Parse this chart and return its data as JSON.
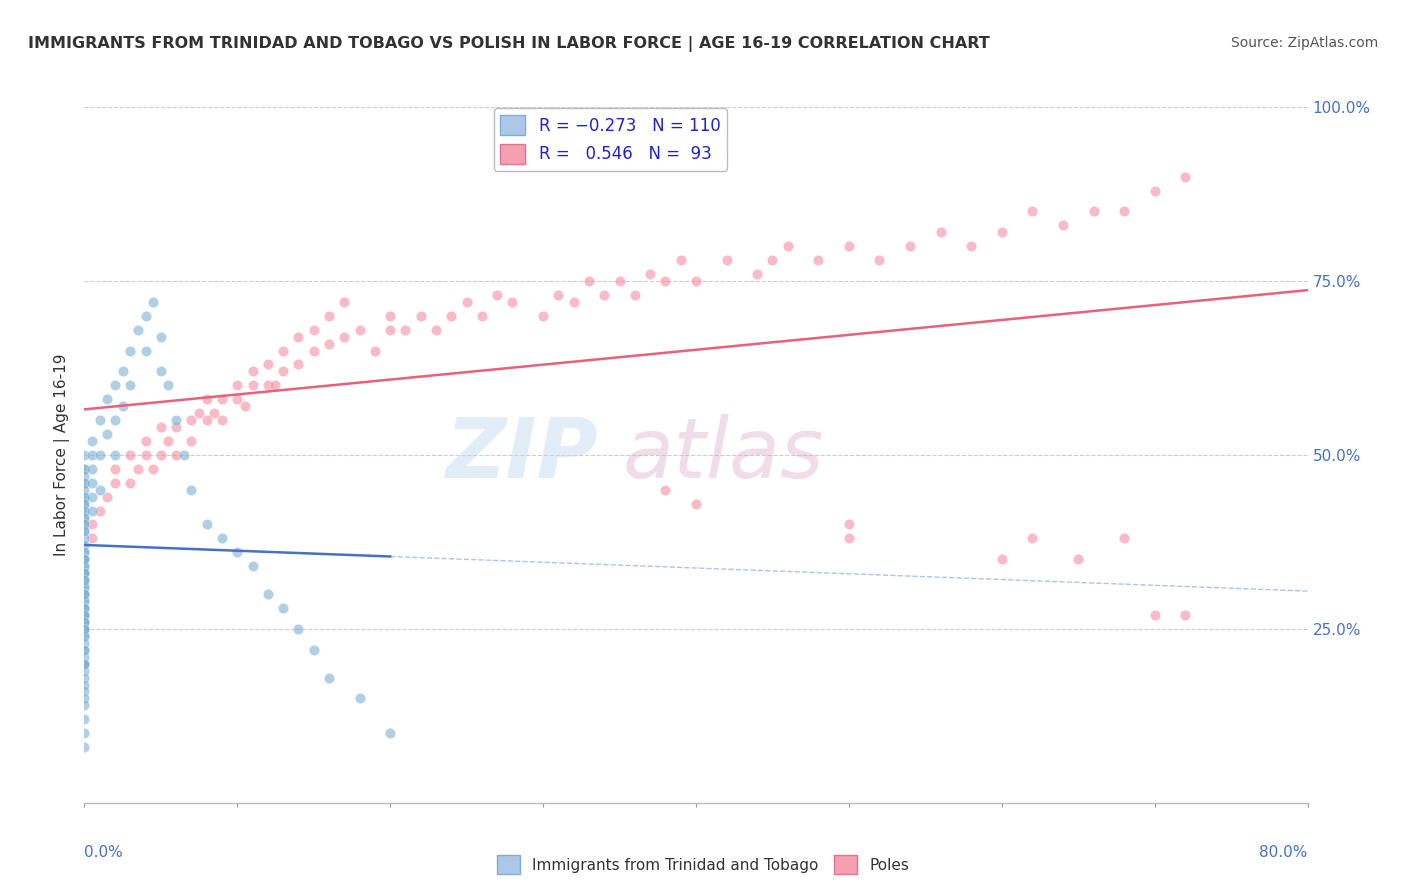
{
  "title": "IMMIGRANTS FROM TRINIDAD AND TOBAGO VS POLISH IN LABOR FORCE | AGE 16-19 CORRELATION CHART",
  "source": "Source: ZipAtlas.com",
  "ylabel_label": "In Labor Force | Age 16-19",
  "blue_R": -0.273,
  "blue_N": 110,
  "pink_R": 0.546,
  "pink_N": 93,
  "xmin": 0.0,
  "xmax": 80.0,
  "ymin": 0.0,
  "ymax": 100.0,
  "blue_color": "#7bafd4",
  "pink_color": "#f48ca0",
  "blue_line_color": "#4472c4",
  "pink_line_color": "#e8607a",
  "background_color": "#ffffff",
  "blue_x": [
    0.0,
    0.0,
    0.0,
    0.0,
    0.0,
    0.0,
    0.0,
    0.0,
    0.0,
    0.0,
    0.0,
    0.0,
    0.0,
    0.0,
    0.0,
    0.0,
    0.0,
    0.0,
    0.0,
    0.0,
    0.0,
    0.0,
    0.0,
    0.0,
    0.0,
    0.0,
    0.0,
    0.0,
    0.0,
    0.0,
    0.0,
    0.0,
    0.0,
    0.0,
    0.0,
    0.0,
    0.0,
    0.0,
    0.0,
    0.0,
    0.0,
    0.0,
    0.0,
    0.0,
    0.0,
    0.0,
    0.0,
    0.0,
    0.0,
    0.0,
    0.0,
    0.0,
    0.0,
    0.0,
    0.0,
    0.0,
    0.0,
    0.0,
    0.0,
    0.0,
    0.5,
    0.5,
    0.5,
    0.5,
    0.5,
    0.5,
    1.0,
    1.0,
    1.0,
    1.5,
    1.5,
    2.0,
    2.0,
    2.0,
    2.5,
    2.5,
    3.0,
    3.0,
    3.5,
    4.0,
    4.0,
    4.5,
    5.0,
    5.0,
    5.5,
    6.0,
    6.5,
    7.0,
    8.0,
    9.0,
    10.0,
    11.0,
    12.0,
    13.0,
    14.0,
    15.0,
    16.0,
    18.0,
    20.0,
    0.0,
    0.0,
    0.0,
    0.0,
    0.0,
    0.0,
    0.0,
    0.0,
    0.0,
    0.0,
    0.0
  ],
  "blue_y": [
    50,
    48,
    46,
    44,
    43,
    42,
    41,
    40,
    39,
    38,
    37,
    36,
    36,
    35,
    35,
    34,
    34,
    33,
    33,
    32,
    32,
    31,
    31,
    30,
    30,
    29,
    29,
    28,
    28,
    27,
    27,
    26,
    26,
    25,
    25,
    24,
    24,
    23,
    22,
    21,
    20,
    20,
    19,
    18,
    17,
    16,
    15,
    14,
    12,
    10,
    48,
    47,
    46,
    45,
    44,
    43,
    42,
    41,
    40,
    39,
    52,
    50,
    48,
    46,
    44,
    42,
    55,
    50,
    45,
    58,
    53,
    60,
    55,
    50,
    62,
    57,
    65,
    60,
    68,
    70,
    65,
    72,
    67,
    62,
    60,
    55,
    50,
    45,
    40,
    38,
    36,
    34,
    30,
    28,
    25,
    22,
    18,
    15,
    10,
    8,
    35,
    33,
    32,
    30,
    28,
    27,
    26,
    25,
    22,
    20
  ],
  "pink_x": [
    0.5,
    0.5,
    1.0,
    1.5,
    2.0,
    2.0,
    3.0,
    3.0,
    3.5,
    4.0,
    4.0,
    4.5,
    5.0,
    5.0,
    5.5,
    6.0,
    6.0,
    7.0,
    7.0,
    7.5,
    8.0,
    8.0,
    8.5,
    9.0,
    9.0,
    10.0,
    10.0,
    10.5,
    11.0,
    11.0,
    12.0,
    12.0,
    12.5,
    13.0,
    13.0,
    14.0,
    14.0,
    15.0,
    15.0,
    16.0,
    16.0,
    17.0,
    17.0,
    18.0,
    19.0,
    20.0,
    20.0,
    21.0,
    22.0,
    23.0,
    24.0,
    25.0,
    26.0,
    27.0,
    28.0,
    30.0,
    31.0,
    32.0,
    33.0,
    34.0,
    35.0,
    36.0,
    37.0,
    38.0,
    39.0,
    40.0,
    42.0,
    44.0,
    45.0,
    46.0,
    48.0,
    50.0,
    52.0,
    54.0,
    56.0,
    58.0,
    60.0,
    62.0,
    64.0,
    66.0,
    68.0,
    70.0,
    72.0,
    38.0,
    40.0,
    50.0,
    50.0,
    60.0,
    62.0,
    65.0,
    68.0,
    70.0,
    72.0
  ],
  "pink_y": [
    40,
    38,
    42,
    44,
    46,
    48,
    46,
    50,
    48,
    50,
    52,
    48,
    50,
    54,
    52,
    54,
    50,
    55,
    52,
    56,
    55,
    58,
    56,
    58,
    55,
    58,
    60,
    57,
    60,
    62,
    60,
    63,
    60,
    62,
    65,
    63,
    67,
    65,
    68,
    66,
    70,
    67,
    72,
    68,
    65,
    68,
    70,
    68,
    70,
    68,
    70,
    72,
    70,
    73,
    72,
    70,
    73,
    72,
    75,
    73,
    75,
    73,
    76,
    75,
    78,
    75,
    78,
    76,
    78,
    80,
    78,
    80,
    78,
    80,
    82,
    80,
    82,
    85,
    83,
    85,
    85,
    88,
    90,
    45,
    43,
    40,
    38,
    35,
    38,
    35,
    38,
    27,
    27
  ]
}
